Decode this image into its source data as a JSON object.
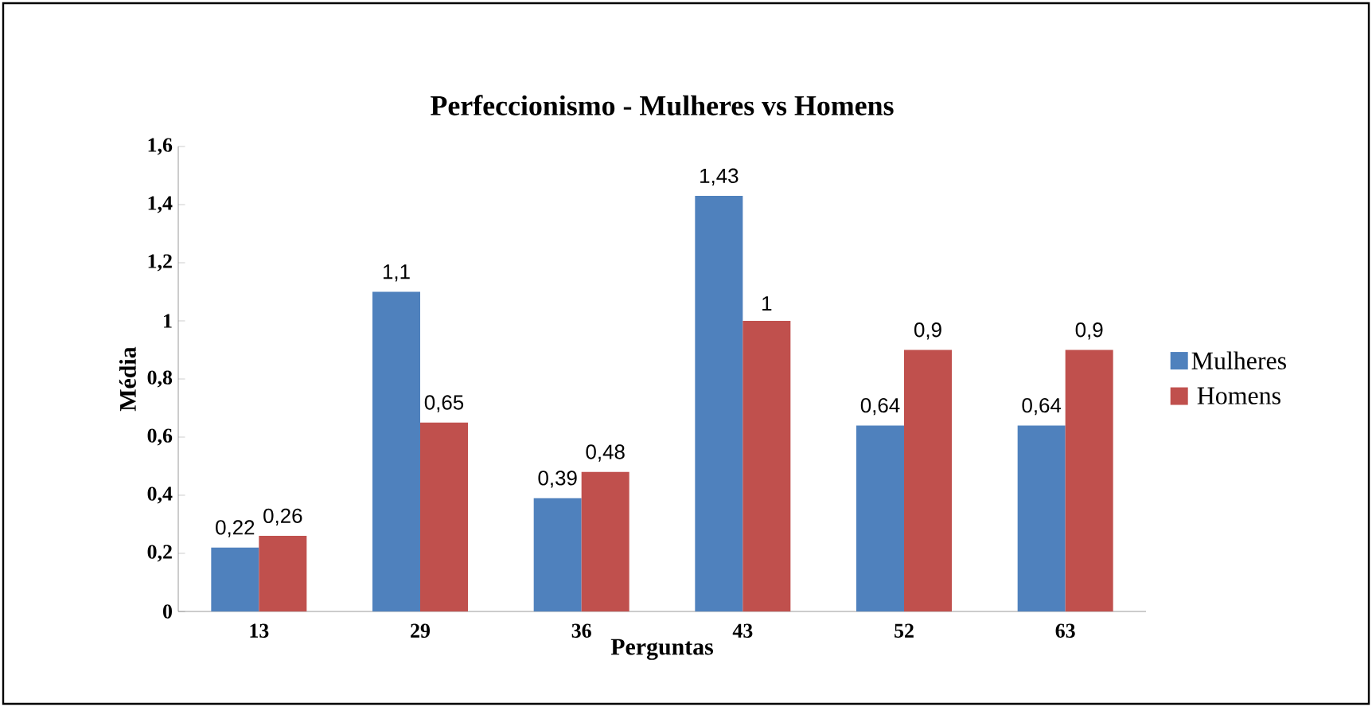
{
  "chart_data": {
    "type": "bar",
    "title": "Perfeccionismo - Mulheres vs Homens",
    "xlabel": "Perguntas",
    "ylabel": "Média",
    "categories": [
      "13",
      "29",
      "36",
      "43",
      "52",
      "63"
    ],
    "series": [
      {
        "name": "Mulheres",
        "color": "#4f81bd",
        "values": [
          0.22,
          1.1,
          0.39,
          1.43,
          0.64,
          0.64
        ],
        "value_labels": [
          "0,22",
          "1,1",
          "0,39",
          "1,43",
          "0,64",
          "0,64"
        ]
      },
      {
        "name": "Homens",
        "color": "#c0504d",
        "values": [
          0.26,
          0.65,
          0.48,
          1,
          0.9,
          0.9
        ],
        "value_labels": [
          "0,26",
          "0,65",
          "0,48",
          "1",
          "0,9",
          "0,9"
        ]
      }
    ],
    "ylim": [
      0,
      1.6
    ],
    "yticks": [
      0,
      {
        "value": 0.2,
        "label": "0,2"
      },
      {
        "value": 0.4,
        "label": "0,4"
      },
      {
        "value": 0.6,
        "label": "0,6"
      },
      {
        "value": 0.8,
        "label": "0,8"
      },
      1,
      {
        "value": 1.2,
        "label": "1,2"
      },
      {
        "value": 1.4,
        "label": "1,4"
      },
      {
        "value": 1.6,
        "label": "1,6"
      }
    ],
    "grid": false,
    "legend": "right"
  }
}
